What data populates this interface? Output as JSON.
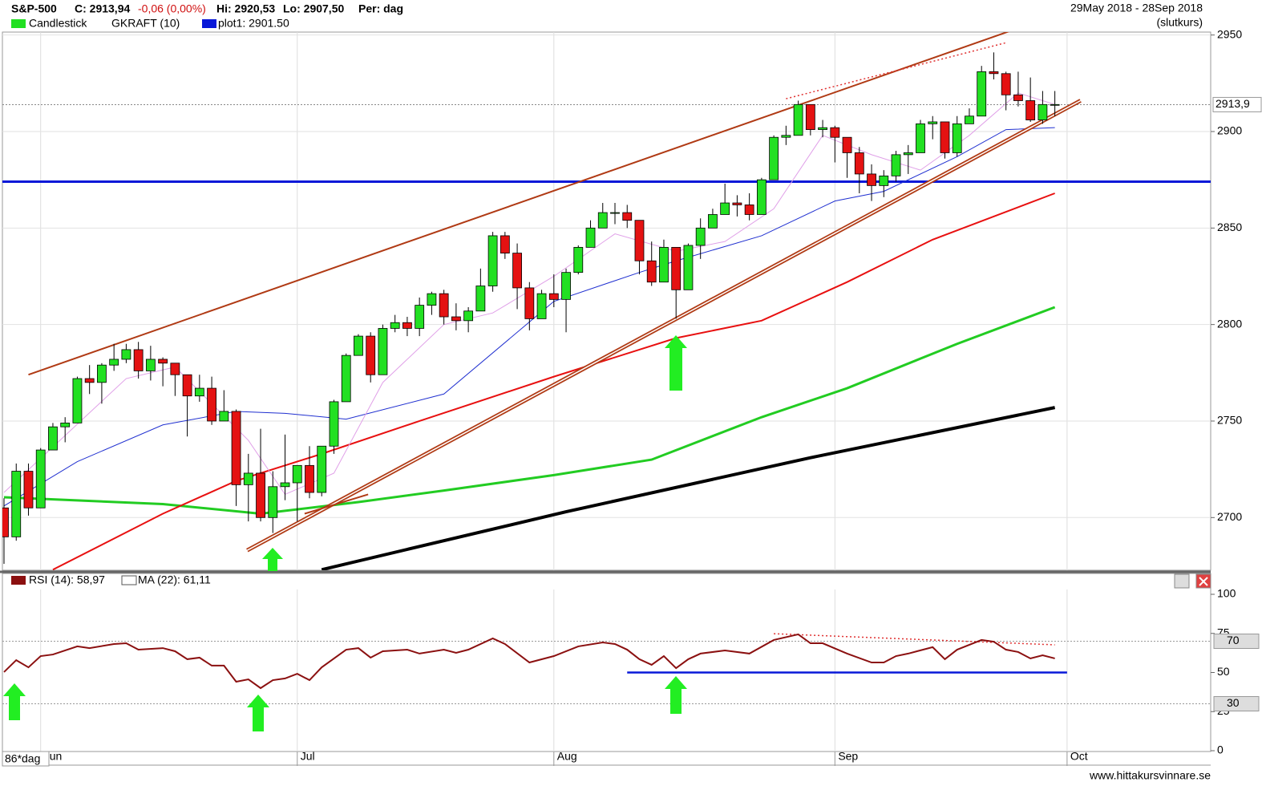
{
  "header": {
    "symbol": "S&P-500",
    "close": "C: 2913,94",
    "change": "-0,06 (0,00%)",
    "high": "Hi: 2920,53",
    "low": "Lo: 2907,50",
    "period": "Per: dag",
    "range": "29May 2018 - 28Sep 2018",
    "price_type": "(slutkurs)",
    "legend": [
      "Candlestick",
      "GKRAFT (10)",
      "plot1: 2901.50"
    ],
    "day_count": "86*dag",
    "footer": "www.hittakursvinnare.se"
  },
  "chart_data": {
    "type": "candlestick",
    "candles": [
      [
        2705,
        2710,
        2676,
        2690
      ],
      [
        2690,
        2728,
        2688,
        2724
      ],
      [
        2724,
        2728,
        2701,
        2705
      ],
      [
        2705,
        2736,
        2705,
        2735
      ],
      [
        2735,
        2749,
        2735,
        2747
      ],
      [
        2747,
        2752,
        2739,
        2749
      ],
      [
        2749,
        2773,
        2749,
        2772
      ],
      [
        2772,
        2779,
        2764,
        2770
      ],
      [
        2770,
        2780,
        2759,
        2779
      ],
      [
        2779,
        2790,
        2776,
        2782
      ],
      [
        2782,
        2790,
        2780,
        2787
      ],
      [
        2787,
        2791,
        2772,
        2776
      ],
      [
        2776,
        2789,
        2771,
        2782
      ],
      [
        2782,
        2783,
        2768,
        2780
      ],
      [
        2780,
        2780,
        2763,
        2774
      ],
      [
        2774,
        2774,
        2742,
        2763
      ],
      [
        2763,
        2774,
        2760,
        2767
      ],
      [
        2767,
        2773,
        2748,
        2750
      ],
      [
        2750,
        2766,
        2750,
        2755
      ],
      [
        2755,
        2756,
        2706,
        2717
      ],
      [
        2717,
        2733,
        2698,
        2723
      ],
      [
        2723,
        2746,
        2698,
        2700
      ],
      [
        2700,
        2724,
        2692,
        2716
      ],
      [
        2716,
        2743,
        2709,
        2718
      ],
      [
        2718,
        2727,
        2698,
        2727
      ],
      [
        2727,
        2737,
        2710,
        2713
      ],
      [
        2713,
        2737,
        2711,
        2737
      ],
      [
        2737,
        2761,
        2733,
        2760
      ],
      [
        2760,
        2785,
        2760,
        2784
      ],
      [
        2784,
        2795,
        2784,
        2794
      ],
      [
        2794,
        2796,
        2770,
        2774
      ],
      [
        2774,
        2800,
        2774,
        2798
      ],
      [
        2798,
        2805,
        2796,
        2801
      ],
      [
        2801,
        2804,
        2794,
        2798
      ],
      [
        2798,
        2814,
        2794,
        2810
      ],
      [
        2810,
        2817,
        2805,
        2816
      ],
      [
        2816,
        2818,
        2800,
        2804
      ],
      [
        2804,
        2811,
        2797,
        2802
      ],
      [
        2802,
        2809,
        2796,
        2807
      ],
      [
        2807,
        2829,
        2807,
        2820
      ],
      [
        2820,
        2848,
        2817,
        2846
      ],
      [
        2846,
        2848,
        2834,
        2837
      ],
      [
        2837,
        2842,
        2808,
        2819
      ],
      [
        2819,
        2822,
        2797,
        2803
      ],
      [
        2803,
        2818,
        2803,
        2816
      ],
      [
        2816,
        2826,
        2809,
        2813
      ],
      [
        2813,
        2829,
        2796,
        2827
      ],
      [
        2827,
        2841,
        2826,
        2840
      ],
      [
        2840,
        2854,
        2840,
        2850
      ],
      [
        2850,
        2863,
        2850,
        2858
      ],
      [
        2858,
        2863,
        2852,
        2858
      ],
      [
        2858,
        2862,
        2850,
        2854
      ],
      [
        2854,
        2854,
        2826,
        2833
      ],
      [
        2833,
        2843,
        2820,
        2822
      ],
      [
        2822,
        2844,
        2822,
        2840
      ],
      [
        2840,
        2840,
        2803,
        2818
      ],
      [
        2818,
        2842,
        2818,
        2841
      ],
      [
        2841,
        2855,
        2834,
        2850
      ],
      [
        2850,
        2860,
        2850,
        2857
      ],
      [
        2857,
        2873,
        2857,
        2863
      ],
      [
        2863,
        2867,
        2856,
        2862
      ],
      [
        2862,
        2868,
        2854,
        2857
      ],
      [
        2857,
        2876,
        2857,
        2875
      ],
      [
        2875,
        2898,
        2875,
        2897
      ],
      [
        2897,
        2903,
        2893,
        2898
      ],
      [
        2898,
        2916,
        2898,
        2914
      ],
      [
        2914,
        2914,
        2898,
        2901
      ],
      [
        2901,
        2906,
        2897,
        2902
      ],
      [
        2902,
        2903,
        2884,
        2897
      ],
      [
        2897,
        2897,
        2876,
        2889
      ],
      [
        2889,
        2892,
        2868,
        2878
      ],
      [
        2878,
        2883,
        2864,
        2872
      ],
      [
        2872,
        2880,
        2866,
        2877
      ],
      [
        2877,
        2890,
        2874,
        2888
      ],
      [
        2888,
        2893,
        2878,
        2889
      ],
      [
        2889,
        2906,
        2889,
        2904
      ],
      [
        2904,
        2908,
        2896,
        2905
      ],
      [
        2905,
        2905,
        2886,
        2889
      ],
      [
        2889,
        2908,
        2887,
        2904
      ],
      [
        2904,
        2912,
        2904,
        2908
      ],
      [
        2908,
        2934,
        2908,
        2931
      ],
      [
        2931,
        2941,
        2927,
        2930
      ],
      [
        2930,
        2931,
        2911,
        2919
      ],
      [
        2919,
        2931,
        2913,
        2916
      ],
      [
        2916,
        2928,
        2905,
        2906
      ],
      [
        2906,
        2921,
        2904,
        2914
      ],
      [
        2914,
        2921,
        2908,
        2914
      ]
    ],
    "up_color": "#22e022",
    "down_color": "#e41212",
    "ylim": [
      2672.7,
      2953.6
    ],
    "yticks": [
      2700,
      2750,
      2800,
      2850,
      2900,
      2950
    ],
    "grid": true,
    "x_labels": [
      {
        "index": 3,
        "label": "Jun"
      },
      {
        "index": 24,
        "label": "Jul"
      },
      {
        "index": 45,
        "label": "Aug"
      },
      {
        "index": 68,
        "label": "Sep"
      },
      {
        "index": 87,
        "label": "Oct"
      }
    ],
    "overlays": [
      {
        "color": "#000000",
        "line_width": 4,
        "x": [
          26,
          46,
          66,
          86
        ],
        "values": [
          2673,
          2703,
          2731,
          2757
        ]
      },
      {
        "color": "#22cc22",
        "line_width": 3,
        "x": [
          0,
          13,
          21,
          29,
          36,
          45,
          53,
          62,
          69,
          78,
          86
        ],
        "values": [
          2710.5,
          2707,
          2702,
          2708,
          2714,
          2722,
          2730,
          2752,
          2767,
          2790,
          2809
        ]
      },
      {
        "color": "#e81010",
        "line_width": 2,
        "x": [
          4,
          13,
          19,
          26,
          34,
          45,
          55,
          62,
          69,
          76,
          86
        ],
        "values": [
          2673,
          2702,
          2719,
          2733,
          2750,
          2773,
          2793,
          2802,
          2822,
          2844,
          2868
        ]
      },
      {
        "color": "#2030d0",
        "line_width": 1,
        "x": [
          0,
          6,
          13,
          19,
          23,
          28,
          36,
          45,
          52,
          55,
          62,
          68,
          72,
          78,
          82,
          86
        ],
        "values": [
          2706,
          2729,
          2748,
          2755,
          2754,
          2751,
          2764,
          2812,
          2827,
          2833,
          2846,
          2864,
          2869,
          2887,
          2901,
          2902
        ]
      },
      {
        "color": "#e0a0e8",
        "line_width": 1,
        "x": [
          0,
          10,
          14,
          20,
          23,
          27,
          31,
          36,
          40,
          45,
          50,
          55,
          59,
          63,
          67,
          71,
          75,
          79,
          83,
          86
        ],
        "values": [
          2713,
          2772,
          2778,
          2740,
          2712,
          2723,
          2770,
          2800,
          2806,
          2825,
          2847,
          2838,
          2843,
          2860,
          2898,
          2888,
          2880,
          2898,
          2920,
          2914
        ]
      }
    ],
    "level": {
      "value": 2874,
      "color": "#0818d8"
    },
    "last_price": {
      "value": 2913.94,
      "label": "2913,9"
    },
    "trendlines": [
      {
        "color": "#b03a14",
        "line_width": 2,
        "x": [
          2,
          82.3
        ],
        "values": [
          2774,
          2952
        ]
      },
      {
        "color": "#b03a14",
        "line_width": 5,
        "double": true,
        "x": [
          19.9,
          88.1
        ],
        "values": [
          2683,
          2916
        ]
      },
      {
        "color": "#b03a14",
        "line_width": 2,
        "x": [
          24.6,
          29.8
        ],
        "values": [
          2702,
          2712
        ]
      },
      {
        "color": "#e03030",
        "line_width": 1.5,
        "dotted": true,
        "x": [
          64,
          82
        ],
        "values": [
          2917,
          2946
        ]
      }
    ]
  },
  "rsi": {
    "type": "line",
    "legend": [
      "RSI (14): 58,97",
      "MA (22): 61,11"
    ],
    "color": "#8b1010",
    "ylim": [
      0,
      100
    ],
    "yticks": [
      100,
      75,
      50,
      25,
      0
    ],
    "bands": [
      70,
      30
    ],
    "x": [
      0,
      1,
      2,
      3,
      4,
      6,
      7,
      9,
      10,
      11,
      13,
      14,
      15,
      16,
      17,
      18,
      19,
      20,
      21,
      22,
      23,
      24,
      25,
      26,
      28,
      29,
      30,
      31,
      33,
      34,
      36,
      37,
      38,
      40,
      41,
      43,
      45,
      47,
      49,
      50,
      51,
      52,
      53,
      54,
      55,
      56,
      57,
      59,
      61,
      63,
      65,
      66,
      67,
      69,
      71,
      72,
      73,
      74,
      76,
      77,
      78,
      80,
      81,
      82,
      83,
      84,
      85,
      86
    ],
    "values": [
      50.3,
      57.9,
      53.3,
      60.5,
      61.5,
      66.7,
      65.6,
      68.2,
      68.7,
      64.6,
      65.6,
      63.6,
      58.5,
      59.5,
      54.4,
      54.4,
      44.1,
      45.6,
      40,
      45.1,
      46.2,
      49.2,
      45.1,
      53.3,
      64.6,
      65.6,
      59.5,
      63.6,
      64.6,
      62.1,
      64.6,
      62.6,
      64.6,
      71.8,
      68.2,
      56.4,
      60.5,
      66.7,
      69.2,
      68.2,
      64.6,
      58.5,
      54.9,
      60.5,
      52.8,
      58.5,
      62.1,
      64.1,
      62.1,
      70.8,
      74.4,
      68.7,
      68.7,
      62.1,
      56.4,
      56.4,
      60.5,
      62.1,
      66.2,
      58.5,
      64.6,
      70.8,
      69.7,
      64.6,
      63.1,
      59,
      61,
      59
    ],
    "trendlines": [
      {
        "color": "#0818d8",
        "line_width": 2.5,
        "x": [
          51,
          87
        ],
        "values": [
          50,
          50
        ]
      },
      {
        "color": "#e03030",
        "line_width": 1.5,
        "dotted": true,
        "x": [
          63,
          86
        ],
        "values": [
          74.8,
          67.7
        ]
      }
    ]
  }
}
